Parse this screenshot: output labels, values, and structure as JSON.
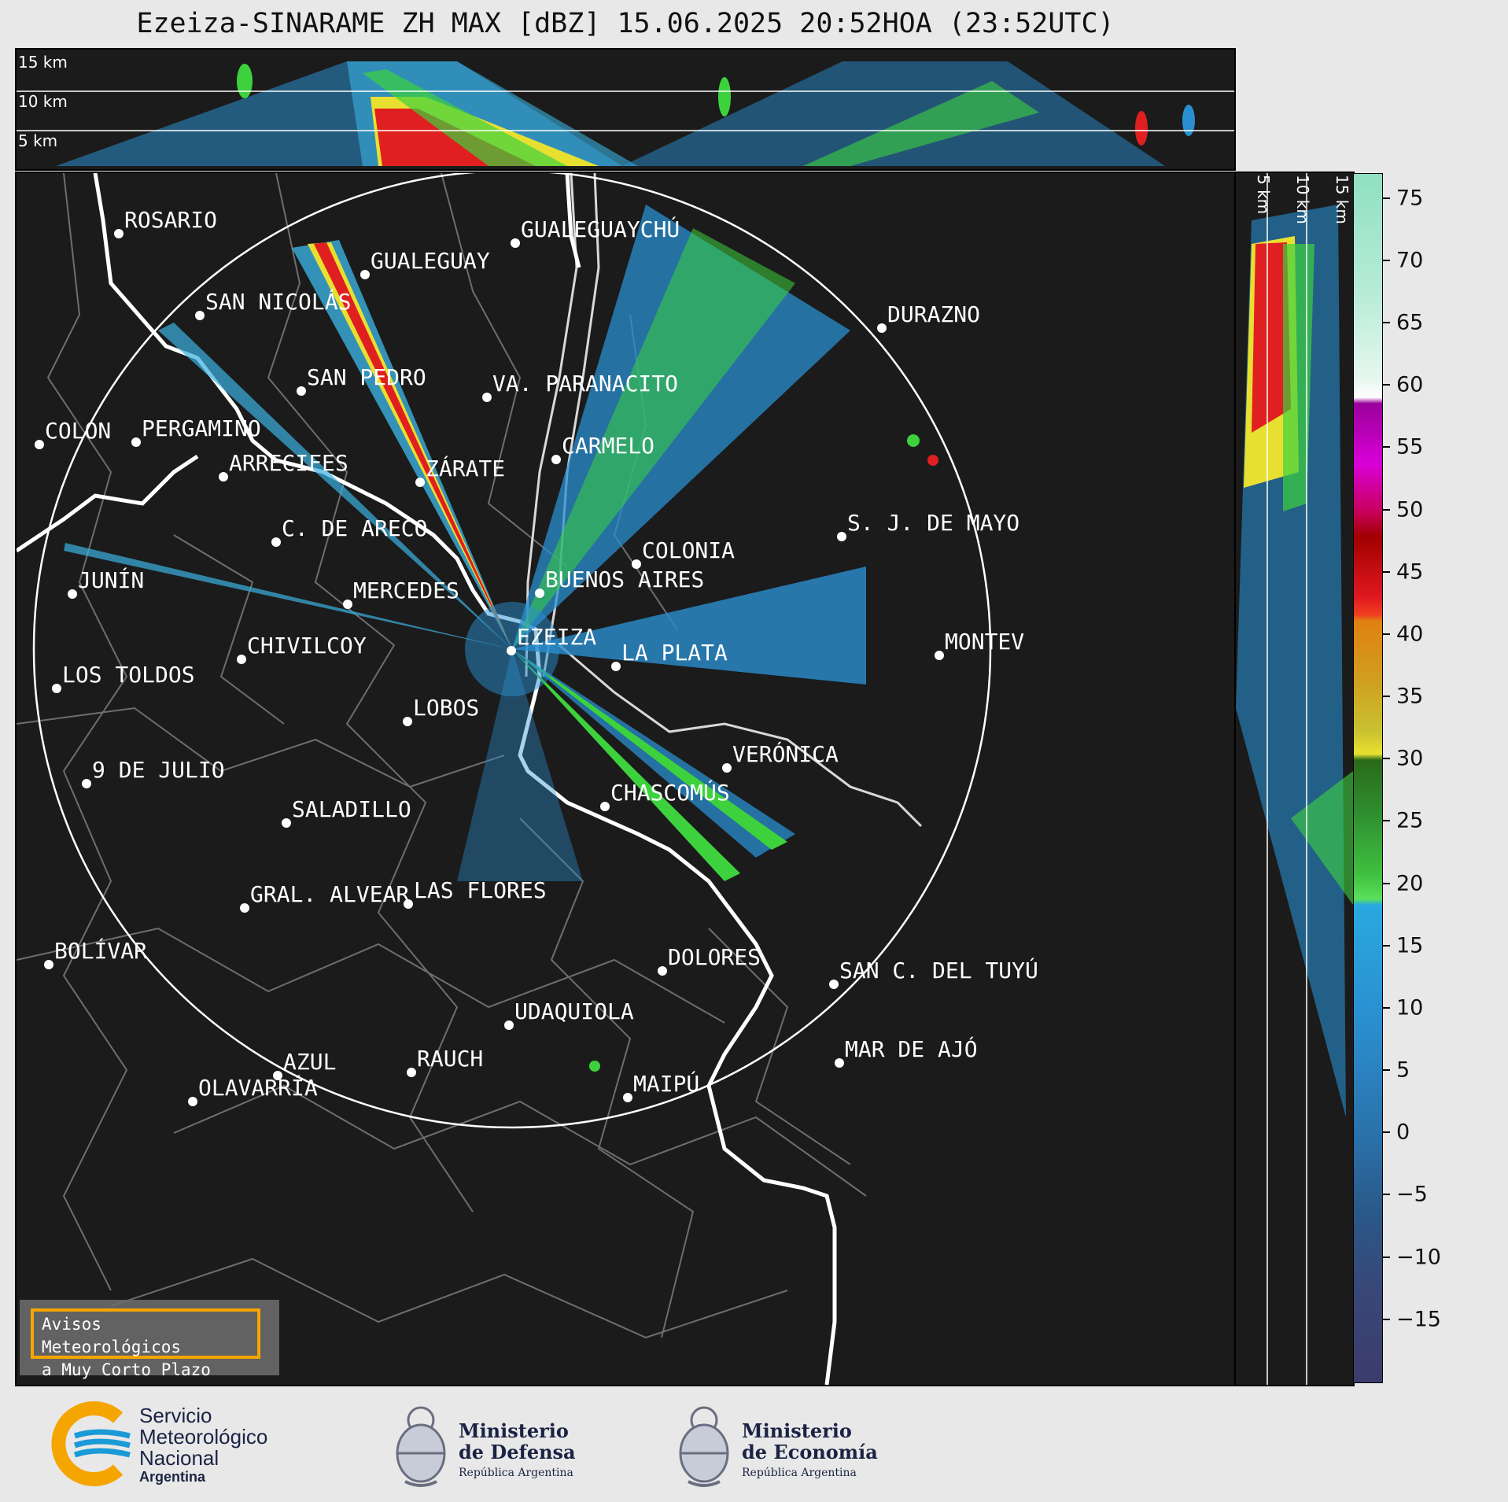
{
  "title": "Ezeiza-SINARAME ZH MAX [dBZ] 15.06.2025 20:52HOA (23:52UTC)",
  "top_panel": {
    "heights": [
      "15 km",
      "10 km",
      "5 km"
    ]
  },
  "side_panel": {
    "heights": [
      "5 km",
      "10 km",
      "15 km"
    ]
  },
  "colorbar": {
    "ticks": [
      "75",
      "70",
      "65",
      "60",
      "55",
      "50",
      "45",
      "40",
      "35",
      "30",
      "25",
      "20",
      "15",
      "10",
      "5",
      "0",
      "−5",
      "−10",
      "−15"
    ],
    "range": [
      -20,
      77
    ]
  },
  "cities": [
    {
      "name": "ROSARIO"
    },
    {
      "name": "GUALEGUAYCHÚ"
    },
    {
      "name": "GUALEGUAY"
    },
    {
      "name": "SAN NICOLÁS"
    },
    {
      "name": "DURAZNO"
    },
    {
      "name": "SAN PEDRO"
    },
    {
      "name": "VA. PARANACITO"
    },
    {
      "name": "COLON"
    },
    {
      "name": "PERGAMINO"
    },
    {
      "name": "CARMELO"
    },
    {
      "name": "ARRECIFES"
    },
    {
      "name": "ZÁRATE"
    },
    {
      "name": "S. J. DE MAYO"
    },
    {
      "name": "C. DE ARECO"
    },
    {
      "name": "COLONIA"
    },
    {
      "name": "JUNÍN"
    },
    {
      "name": "BUENOS AIRES"
    },
    {
      "name": "MERCEDES"
    },
    {
      "name": "MONTEV"
    },
    {
      "name": "EZEIZA"
    },
    {
      "name": "CHIVILCOY"
    },
    {
      "name": "LA PLATA"
    },
    {
      "name": "LOS TOLDOS"
    },
    {
      "name": "LOBOS"
    },
    {
      "name": "VERÓNICA"
    },
    {
      "name": "9 DE JULIO"
    },
    {
      "name": "CHASCOMÚS"
    },
    {
      "name": "SALADILLO"
    },
    {
      "name": "GRAL. ALVEAR"
    },
    {
      "name": "LAS FLORES"
    },
    {
      "name": "BOLÍVAR"
    },
    {
      "name": "DOLORES"
    },
    {
      "name": "SAN C. DEL TUYÚ"
    },
    {
      "name": "UDAQUIOLA"
    },
    {
      "name": "MAR DE AJÓ"
    },
    {
      "name": "AZUL"
    },
    {
      "name": "RAUCH"
    },
    {
      "name": "OLAVARRÍA"
    },
    {
      "name": "MAIPÚ"
    }
  ],
  "warning": {
    "line1": "Avisos Meteorológicos",
    "line2": "a Muy Corto Plazo"
  },
  "logos": {
    "smn": {
      "line1": "Servicio",
      "line2": "Meteorológico",
      "line3": "Nacional",
      "line4": "Argentina"
    },
    "defensa": {
      "line1": "Ministerio",
      "line2": "de Defensa",
      "line3": "República Argentina"
    },
    "economia": {
      "line1": "Ministerio",
      "line2": "de Economía",
      "line3": "República Argentina"
    }
  },
  "colors": {
    "background": "#1b1b1b",
    "accent": "#f5a500",
    "smn_blue": "#1a9ad6",
    "smn_orange": "#f5a500"
  }
}
